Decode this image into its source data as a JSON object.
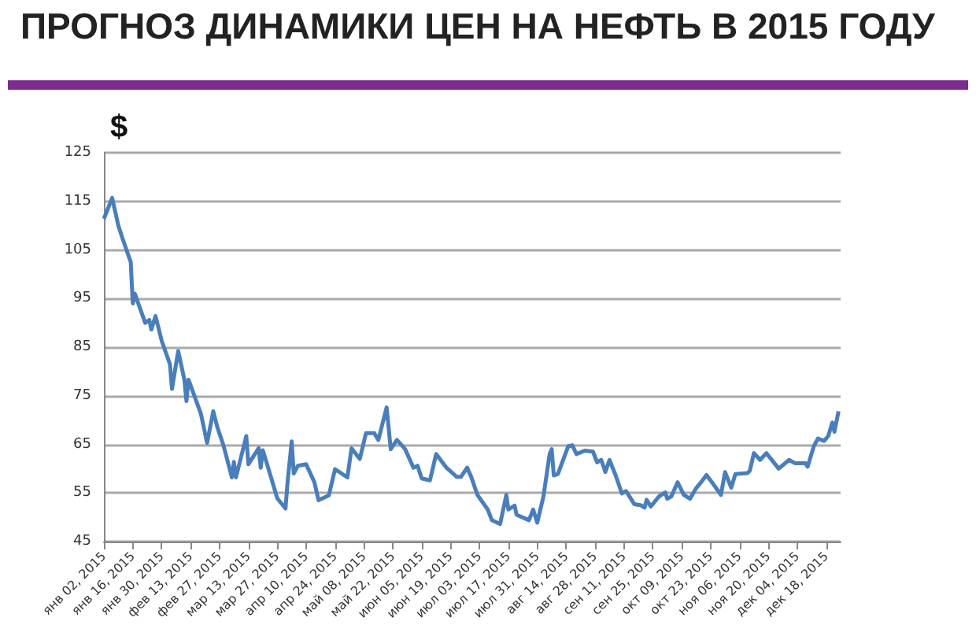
{
  "chart_data": {
    "type": "line",
    "title": "ПРОГНОЗ ДИНАМИКИ ЦЕН НА НЕФТЬ В 2015 ГОДУ",
    "ylabel": "$",
    "x": [
      "2015-01-02",
      "2015-01-06",
      "2015-01-09",
      "2015-01-11",
      "2015-01-15",
      "2015-01-16",
      "2015-01-17",
      "2015-01-22",
      "2015-01-24",
      "2015-01-25",
      "2015-01-27",
      "2015-01-30",
      "2015-02-03",
      "2015-02-04",
      "2015-02-07",
      "2015-02-10",
      "2015-02-11",
      "2015-02-12",
      "2015-02-18",
      "2015-02-21",
      "2015-02-24",
      "2015-02-26",
      "2015-03-01",
      "2015-03-05",
      "2015-03-06",
      "2015-03-07",
      "2015-03-12",
      "2015-03-13",
      "2015-03-18",
      "2015-03-19",
      "2015-03-20",
      "2015-03-24",
      "2015-03-27",
      "2015-03-31",
      "2015-04-01",
      "2015-04-03",
      "2015-04-04",
      "2015-04-06",
      "2015-04-10",
      "2015-04-14",
      "2015-04-16",
      "2015-04-21",
      "2015-04-24",
      "2015-04-30",
      "2015-05-02",
      "2015-05-06",
      "2015-05-09",
      "2015-05-13",
      "2015-05-15",
      "2015-05-19",
      "2015-05-21",
      "2015-05-24",
      "2015-05-28",
      "2015-06-01",
      "2015-06-03",
      "2015-06-05",
      "2015-06-09",
      "2015-06-12",
      "2015-06-17",
      "2015-06-22",
      "2015-06-24",
      "2015-06-27",
      "2015-06-29",
      "2015-07-02",
      "2015-07-07",
      "2015-07-09",
      "2015-07-13",
      "2015-07-16",
      "2015-07-17",
      "2015-07-20",
      "2015-07-21",
      "2015-07-27",
      "2015-07-29",
      "2015-07-31",
      "2015-08-03",
      "2015-08-06",
      "2015-08-07",
      "2015-08-08",
      "2015-08-10",
      "2015-08-15",
      "2015-08-17",
      "2015-08-19",
      "2015-08-23",
      "2015-08-27",
      "2015-08-29",
      "2015-08-31",
      "2015-09-02",
      "2015-09-04",
      "2015-09-07",
      "2015-09-10",
      "2015-09-12",
      "2015-09-16",
      "2015-09-19",
      "2015-09-21",
      "2015-09-22",
      "2015-09-24",
      "2015-09-28",
      "2015-10-01",
      "2015-10-02",
      "2015-10-04",
      "2015-10-07",
      "2015-10-10",
      "2015-10-13",
      "2015-10-16",
      "2015-10-18",
      "2015-10-21",
      "2015-10-24",
      "2015-10-28",
      "2015-10-30",
      "2015-11-02",
      "2015-11-04",
      "2015-11-10",
      "2015-11-11",
      "2015-11-13",
      "2015-11-16",
      "2015-11-19",
      "2015-11-25",
      "2015-11-30",
      "2015-12-03",
      "2015-12-08",
      "2015-12-09",
      "2015-12-12",
      "2015-12-14",
      "2015-12-17",
      "2015-12-19",
      "2015-12-21",
      "2015-12-22",
      "2015-12-24"
    ],
    "series": [
      {
        "color": "#4a7ebb",
        "values": [
          111.4,
          115.7,
          110,
          107.4,
          102.5,
          94,
          96,
          90,
          90.6,
          88.6,
          91.4,
          86.3,
          81.5,
          76.4,
          84.2,
          78.3,
          73.9,
          78.3,
          71.3,
          65.3,
          71.8,
          68.5,
          64.7,
          58.2,
          61.4,
          58.2,
          66.7,
          60.9,
          64.2,
          60.2,
          63.8,
          58.2,
          53.9,
          51.8,
          57.2,
          65.6,
          59,
          60.6,
          60.9,
          57.2,
          53.5,
          54.5,
          59.9,
          58.2,
          64.2,
          62,
          67.3,
          67.3,
          65.9,
          72.6,
          64,
          65.9,
          64,
          60.2,
          60.6,
          58,
          57.6,
          63,
          60.2,
          58.3,
          58.3,
          60.2,
          58.3,
          54.6,
          51.6,
          49.4,
          48.6,
          54.6,
          51.6,
          52.4,
          50.5,
          49.4,
          51.6,
          48.9,
          54.3,
          63,
          64,
          58.6,
          58.9,
          64.6,
          64.8,
          63,
          63.7,
          63.5,
          61.3,
          61.8,
          59.3,
          61.8,
          58.6,
          54.9,
          55.4,
          52.7,
          52.5,
          52,
          53.6,
          52.2,
          54.3,
          55.1,
          53.8,
          54.3,
          57.2,
          54.6,
          53.8,
          56,
          57,
          58.7,
          57,
          54.6,
          59.3,
          56.1,
          58.9,
          59.1,
          59.6,
          63.2,
          61.8,
          63.2,
          60,
          61.8,
          61.1,
          61.1,
          60.4,
          64.6,
          66.2,
          65.7,
          66.7,
          69.5,
          67.6,
          71.8
        ]
      }
    ],
    "xlim": [
      "2015-01-02",
      "2015-12-25"
    ],
    "xticks": [
      {
        "value": "2015-01-02",
        "label": "янв 02, 2015"
      },
      {
        "value": "2015-01-16",
        "label": "янв 16, 2015"
      },
      {
        "value": "2015-01-30",
        "label": "янв 30, 2015"
      },
      {
        "value": "2015-02-13",
        "label": "фев 13, 2015"
      },
      {
        "value": "2015-02-27",
        "label": "фев 27, 2015"
      },
      {
        "value": "2015-03-13",
        "label": "мар 13, 2015"
      },
      {
        "value": "2015-03-27",
        "label": "мар 27, 2015"
      },
      {
        "value": "2015-04-10",
        "label": "апр 10, 2015"
      },
      {
        "value": "2015-04-24",
        "label": "апр 24, 2015"
      },
      {
        "value": "2015-05-08",
        "label": "май 08, 2015"
      },
      {
        "value": "2015-05-22",
        "label": "май 22, 2015"
      },
      {
        "value": "2015-06-05",
        "label": "июн 05, 2015"
      },
      {
        "value": "2015-06-19",
        "label": "июн 19, 2015"
      },
      {
        "value": "2015-07-03",
        "label": "июл 03, 2015"
      },
      {
        "value": "2015-07-17",
        "label": "июл 17, 2015"
      },
      {
        "value": "2015-07-31",
        "label": "июл 31, 2015"
      },
      {
        "value": "2015-08-14",
        "label": "авг 14, 2015"
      },
      {
        "value": "2015-08-28",
        "label": "авг 28, 2015"
      },
      {
        "value": "2015-09-11",
        "label": "сен 11, 2015"
      },
      {
        "value": "2015-09-25",
        "label": "сен 25, 2015"
      },
      {
        "value": "2015-10-09",
        "label": "окт 09, 2015"
      },
      {
        "value": "2015-10-23",
        "label": "окт 23, 2015"
      },
      {
        "value": "2015-11-06",
        "label": "ноя 06, 2015"
      },
      {
        "value": "2015-11-20",
        "label": "ноя 20, 2015"
      },
      {
        "value": "2015-12-04",
        "label": "дек 04, 2015"
      },
      {
        "value": "2015-12-18",
        "label": "дек 18, 2015"
      }
    ],
    "ylim": [
      45,
      125
    ],
    "yticks": [
      45,
      55,
      65,
      75,
      85,
      95,
      105,
      115,
      125
    ],
    "grid": "y",
    "marker": "none",
    "line_style": "solid"
  }
}
